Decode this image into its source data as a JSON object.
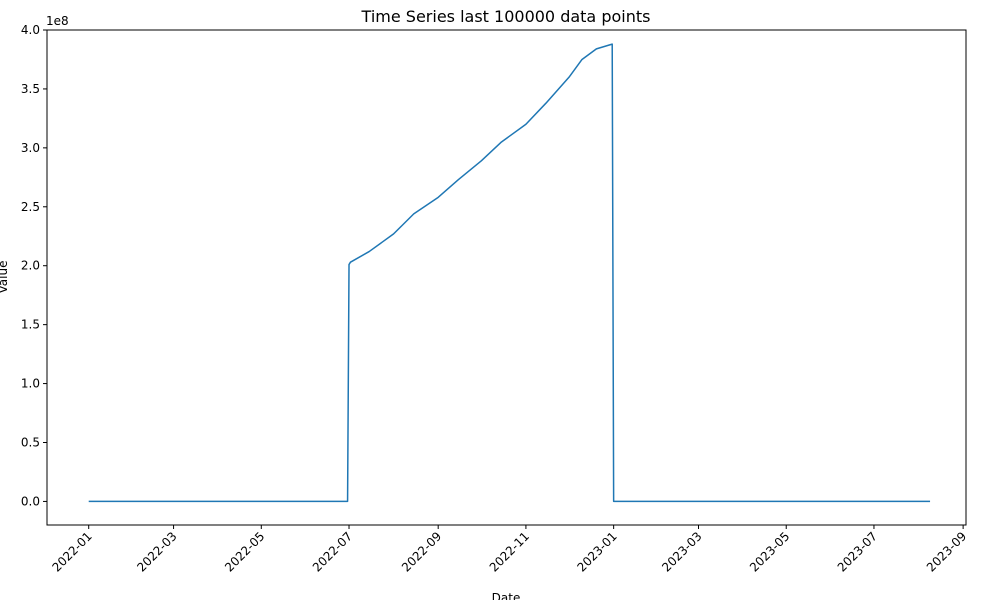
{
  "chart_data": {
    "type": "line",
    "title": "Time Series last 100000 data points",
    "xlabel": "Date",
    "ylabel": "Value",
    "y_offset_label": "1e8",
    "y_unit_multiplier": 100000000,
    "color": "#1f77b4",
    "grid": false,
    "legend": "none",
    "xlim": [
      "2021-12-03",
      "2023-09-03"
    ],
    "ylim": [
      -0.2,
      4.0
    ],
    "x_ticks": [
      "2022-01",
      "2022-03",
      "2022-05",
      "2022-07",
      "2022-09",
      "2022-11",
      "2023-01",
      "2023-03",
      "2023-05",
      "2023-07",
      "2023-09"
    ],
    "x_tick_dates": [
      "2022-01-01",
      "2022-03-01",
      "2022-05-01",
      "2022-07-01",
      "2022-09-01",
      "2022-11-01",
      "2023-01-01",
      "2023-03-01",
      "2023-05-01",
      "2023-07-01",
      "2023-09-01"
    ],
    "y_ticks": [
      0.0,
      0.5,
      1.0,
      1.5,
      2.0,
      2.5,
      3.0,
      3.5,
      4.0
    ],
    "y_tick_labels": [
      "0.0",
      "0.5",
      "1.0",
      "1.5",
      "2.0",
      "2.5",
      "3.0",
      "3.5",
      "4.0"
    ],
    "series": [
      {
        "x": [
          "2022-01-01",
          "2022-06-30",
          "2022-07-01",
          "2022-07-02",
          "2022-07-15",
          "2022-08-01",
          "2022-08-15",
          "2022-09-01",
          "2022-09-15",
          "2022-10-01",
          "2022-10-15",
          "2022-11-01",
          "2022-11-15",
          "2022-12-01",
          "2022-12-10",
          "2022-12-20",
          "2022-12-31",
          "2023-01-01",
          "2023-08-09"
        ],
        "y": [
          0.0,
          0.0,
          2.01,
          2.03,
          2.12,
          2.27,
          2.44,
          2.58,
          2.73,
          2.89,
          3.05,
          3.2,
          3.38,
          3.6,
          3.75,
          3.84,
          3.88,
          0.0,
          0.0
        ]
      }
    ]
  }
}
